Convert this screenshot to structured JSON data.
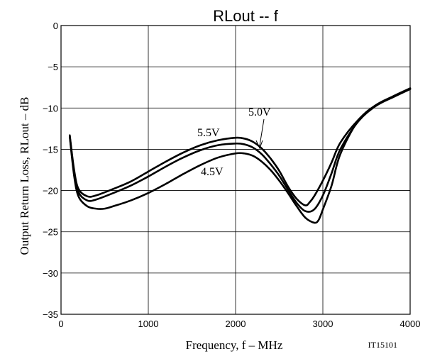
{
  "chart_data": {
    "type": "line",
    "title": "RLout  --  f",
    "xlabel": "Frequency, f  –  MHz",
    "ylabel": "Output Return Loss, RLout  –  dB",
    "figure_id": "IT15101",
    "xlim": [
      0,
      4000
    ],
    "ylim": [
      -35,
      0
    ],
    "x_ticks": [
      0,
      1000,
      2000,
      3000,
      4000
    ],
    "y_ticks": [
      0,
      -5,
      -10,
      -15,
      -20,
      -25,
      -30,
      -35
    ],
    "y_tick_labels": [
      "0",
      "−5",
      "−10",
      "−15",
      "−20",
      "−25",
      "−30",
      "−35"
    ],
    "grid": true,
    "series": [
      {
        "name": "5.5V",
        "x": [
          100,
          150,
          200,
          300,
          400,
          600,
          800,
          1000,
          1200,
          1400,
          1600,
          1800,
          2000,
          2100,
          2200,
          2300,
          2400,
          2500,
          2600,
          2700,
          2800,
          2850,
          2900,
          3000,
          3100,
          3200,
          3400,
          3600,
          3800,
          4000
        ],
        "y": [
          -13.3,
          -17.5,
          -19.8,
          -20.7,
          -20.6,
          -19.8,
          -18.9,
          -17.7,
          -16.5,
          -15.4,
          -14.5,
          -13.9,
          -13.6,
          -13.7,
          -14.1,
          -14.9,
          -16.1,
          -17.6,
          -19.5,
          -21.0,
          -21.8,
          -21.4,
          -20.7,
          -18.8,
          -16.6,
          -14.2,
          -11.5,
          -9.7,
          -8.7,
          -7.7
        ]
      },
      {
        "name": "5.0V",
        "x": [
          100,
          150,
          200,
          300,
          400,
          600,
          800,
          1000,
          1200,
          1400,
          1600,
          1800,
          2000,
          2100,
          2200,
          2300,
          2400,
          2500,
          2600,
          2700,
          2800,
          2900,
          3000,
          3100,
          3200,
          3400,
          3600,
          3800,
          4000
        ],
        "y": [
          -13.4,
          -17.8,
          -20.2,
          -21.2,
          -21.1,
          -20.3,
          -19.4,
          -18.3,
          -17.1,
          -16.0,
          -15.1,
          -14.5,
          -14.3,
          -14.4,
          -14.8,
          -15.6,
          -16.8,
          -18.2,
          -19.9,
          -21.5,
          -22.5,
          -22.3,
          -20.6,
          -17.9,
          -15.0,
          -11.7,
          -9.8,
          -8.7,
          -7.7
        ]
      },
      {
        "name": "4.5V",
        "x": [
          100,
          150,
          200,
          300,
          400,
          500,
          600,
          800,
          1000,
          1200,
          1400,
          1600,
          1800,
          2000,
          2100,
          2200,
          2300,
          2400,
          2500,
          2600,
          2700,
          2800,
          2900,
          2950,
          3000,
          3100,
          3200,
          3400,
          3600,
          3800,
          4000
        ],
        "y": [
          -13.5,
          -18.2,
          -20.7,
          -21.9,
          -22.2,
          -22.2,
          -21.9,
          -21.2,
          -20.3,
          -19.2,
          -18.0,
          -16.9,
          -16.0,
          -15.5,
          -15.5,
          -15.8,
          -16.5,
          -17.5,
          -18.8,
          -20.3,
          -21.9,
          -23.3,
          -23.9,
          -23.6,
          -22.3,
          -19.4,
          -15.6,
          -11.6,
          -9.7,
          -8.6,
          -7.6
        ]
      }
    ],
    "annotations": [
      {
        "text": "5.5V",
        "series": "5.5V"
      },
      {
        "text": "5.0V",
        "series": "5.0V"
      },
      {
        "text": "4.5V",
        "series": "4.5V"
      }
    ]
  }
}
